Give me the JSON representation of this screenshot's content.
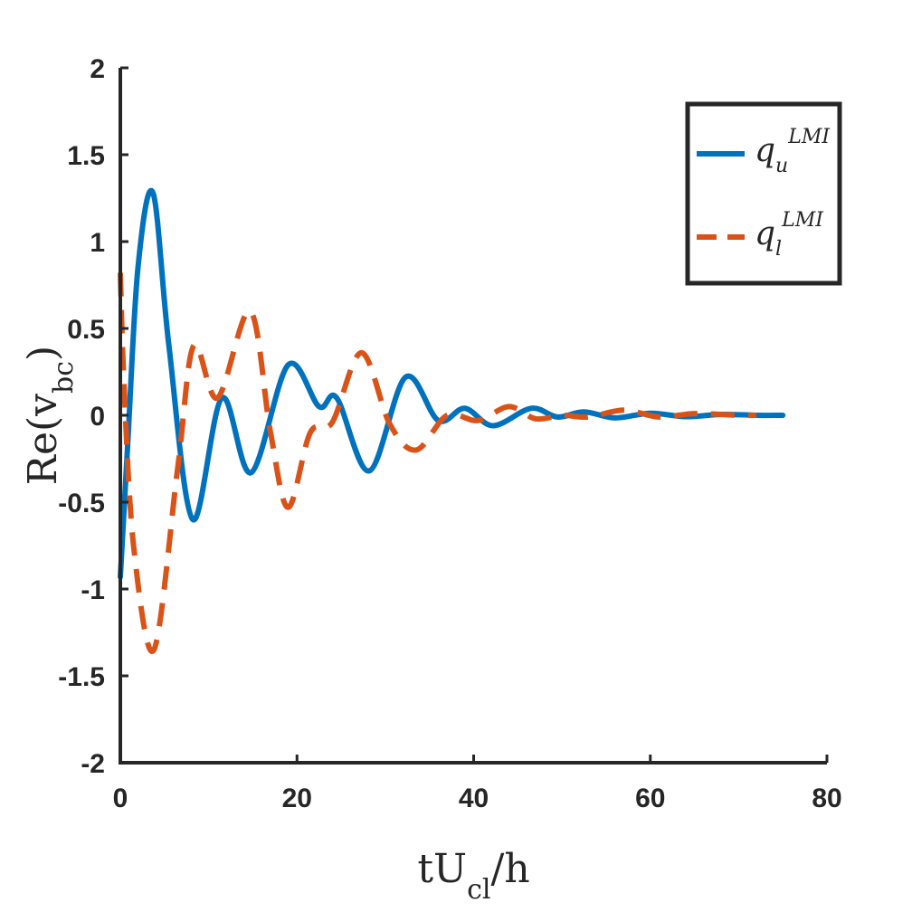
{
  "chart_data": {
    "type": "line",
    "title": "",
    "xlabel": {
      "base": "tU",
      "sub": "cl",
      "tail": "/h"
    },
    "ylabel": {
      "base": "Re(v",
      "sub": "bc",
      "tail": ")"
    },
    "xlim": [
      0,
      80
    ],
    "ylim": [
      -2,
      2
    ],
    "xticks": [
      0,
      20,
      40,
      60,
      80
    ],
    "xtick_labels": [
      "0",
      "20",
      "40",
      "60",
      "80"
    ],
    "yticks": [
      -2,
      -1.5,
      -1,
      -0.5,
      0,
      0.5,
      1,
      1.5,
      2
    ],
    "ytick_labels": [
      "-2",
      "-1.5",
      "-1",
      "-0.5",
      "0",
      "0.5",
      "1",
      "1.5",
      "2"
    ],
    "grid": false,
    "legend_position": "top-right",
    "series": [
      {
        "name": {
          "base": "q",
          "sub": "u",
          "sup": "LMI"
        },
        "color": "#0072BD",
        "dash": "solid",
        "x": [
          0,
          0.8,
          2,
          3.7,
          5.5,
          8.2,
          11.5,
          14.8,
          19,
          22.5,
          24.5,
          28.2,
          32.3,
          36,
          39,
          42.2,
          46.5,
          49.5,
          52.5,
          56,
          60,
          64,
          68,
          72,
          75
        ],
        "y": [
          -0.93,
          -0.2,
          0.85,
          1.28,
          0.4,
          -0.6,
          0.1,
          -0.33,
          0.29,
          0.05,
          0.1,
          -0.32,
          0.22,
          -0.03,
          0.04,
          -0.06,
          0.04,
          -0.01,
          0.02,
          -0.015,
          0.012,
          -0.008,
          0.005,
          0.0,
          0.0
        ]
      },
      {
        "name": {
          "base": "q",
          "sub": "l",
          "sup": "LMI"
        },
        "color": "#D95319",
        "dash": "dashed",
        "x": [
          0,
          0.4,
          1.5,
          3.8,
          6.5,
          8.3,
          11,
          14.7,
          17,
          19,
          21.5,
          24,
          27.3,
          30.5,
          33.5,
          37,
          40.5,
          44,
          47,
          50,
          53,
          57,
          61,
          65,
          70,
          72
        ],
        "y": [
          0.82,
          0.2,
          -0.75,
          -1.35,
          -0.3,
          0.4,
          0.1,
          0.6,
          -0.1,
          -0.53,
          -0.1,
          -0.04,
          0.36,
          -0.05,
          -0.2,
          0.0,
          -0.03,
          0.05,
          -0.02,
          0.0,
          -0.01,
          0.03,
          -0.01,
          0.01,
          0.0,
          0.0
        ]
      }
    ]
  }
}
